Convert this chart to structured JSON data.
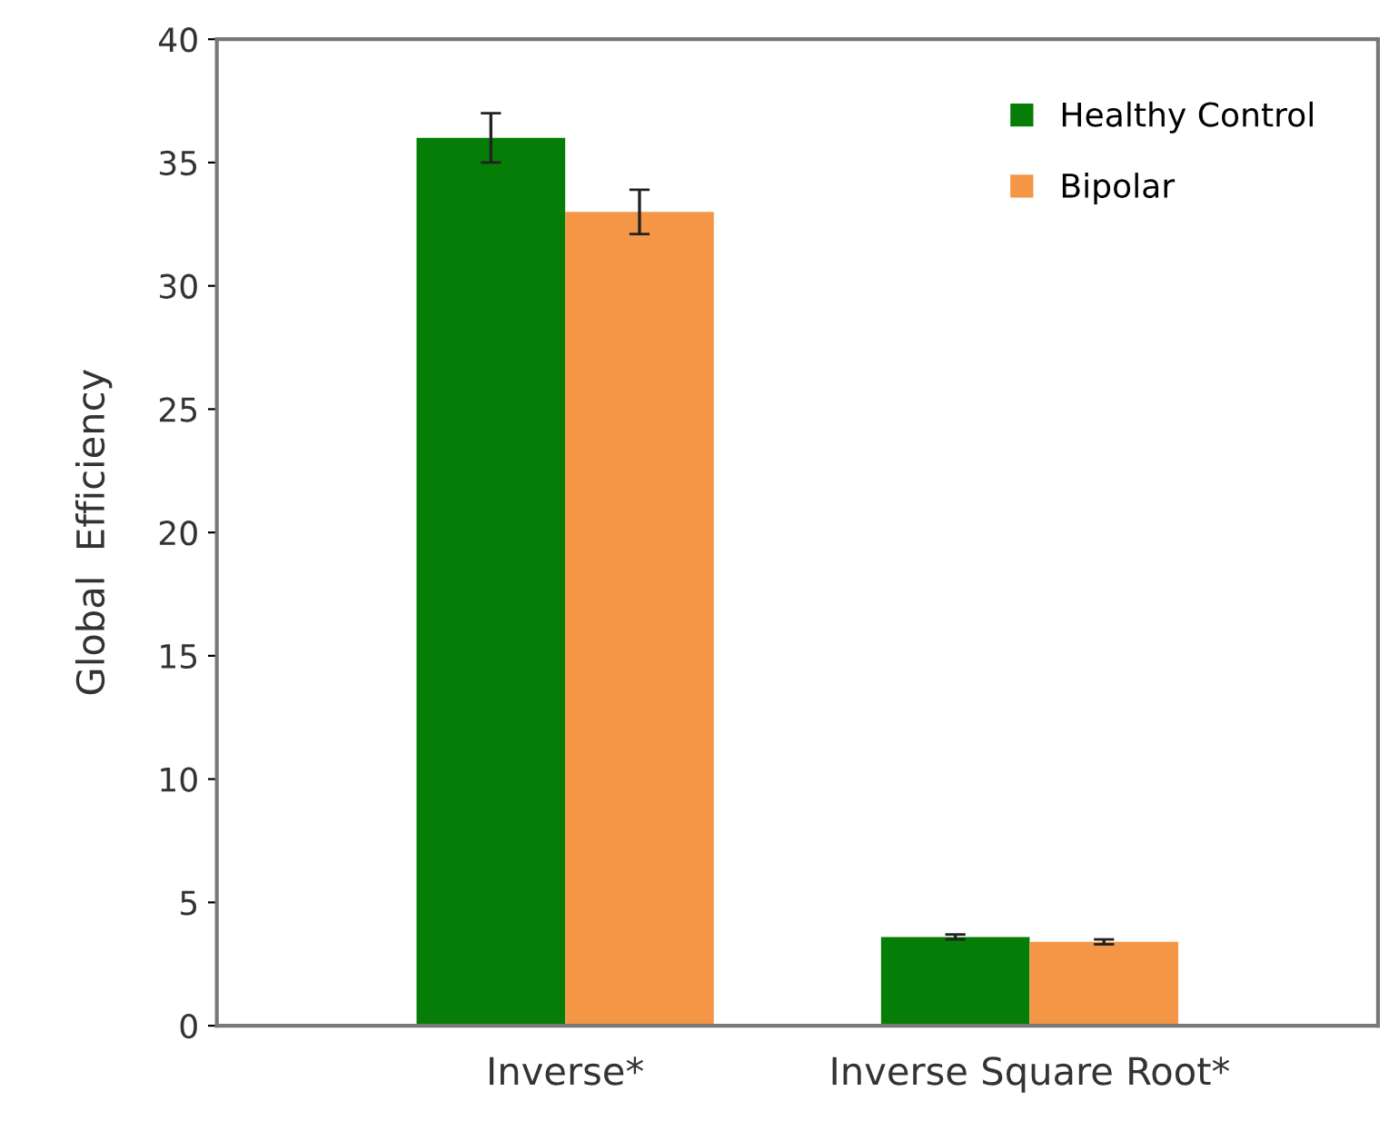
{
  "chart_data": {
    "type": "bar",
    "ylabel": "Global  Efficiency",
    "categories": [
      "Inverse*",
      "Inverse Square Root*"
    ],
    "series": [
      {
        "name": "Healthy Control",
        "color": "#067d06",
        "values": [
          36,
          3.6
        ],
        "errors": [
          1,
          0.1
        ]
      },
      {
        "name": "Bipolar",
        "color": "#f59647",
        "values": [
          33,
          3.4
        ],
        "errors": [
          0.9,
          0.1
        ]
      }
    ],
    "ylim": [
      0,
      40
    ],
    "yticks": [
      0,
      5,
      10,
      15,
      20,
      25,
      30,
      35,
      40
    ],
    "grid": false,
    "legend": "top right"
  }
}
